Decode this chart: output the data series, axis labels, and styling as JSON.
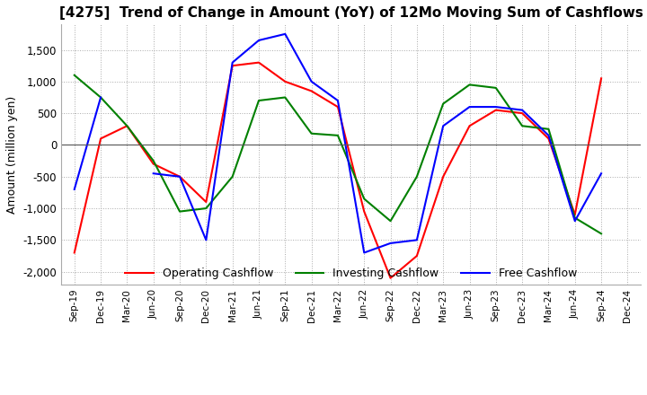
{
  "title": "[4275]  Trend of Change in Amount (YoY) of 12Mo Moving Sum of Cashflows",
  "ylabel": "Amount (million yen)",
  "ylim": [
    -2200,
    1900
  ],
  "yticks": [
    -2000,
    -1500,
    -1000,
    -500,
    0,
    500,
    1000,
    1500
  ],
  "x_labels": [
    "Sep-19",
    "Dec-19",
    "Mar-20",
    "Jun-20",
    "Sep-20",
    "Dec-20",
    "Mar-21",
    "Jun-21",
    "Sep-21",
    "Dec-21",
    "Mar-22",
    "Jun-22",
    "Sep-22",
    "Dec-22",
    "Mar-23",
    "Jun-23",
    "Sep-23",
    "Dec-23",
    "Mar-24",
    "Jun-24",
    "Sep-24",
    "Dec-24"
  ],
  "operating": [
    -1700,
    100,
    300,
    -300,
    -500,
    -900,
    1250,
    1300,
    1000,
    850,
    600,
    -1050,
    -2100,
    -1750,
    -500,
    300,
    550,
    500,
    100,
    -1100,
    1050,
    null
  ],
  "investing": [
    1100,
    750,
    300,
    -250,
    -1050,
    -1000,
    -500,
    700,
    750,
    180,
    150,
    -850,
    -1200,
    -500,
    650,
    950,
    900,
    300,
    250,
    -1150,
    -1400,
    null
  ],
  "free": [
    -700,
    750,
    null,
    -450,
    -500,
    -1500,
    1300,
    1650,
    1750,
    1000,
    700,
    -1700,
    -1550,
    -1500,
    300,
    600,
    600,
    550,
    150,
    -1200,
    -450,
    null
  ],
  "operating_color": "#FF0000",
  "investing_color": "#008000",
  "free_color": "#0000FF",
  "background_color": "#FFFFFF",
  "grid_color": "#AAAAAA",
  "title_fontsize": 11,
  "axis_fontsize": 9
}
